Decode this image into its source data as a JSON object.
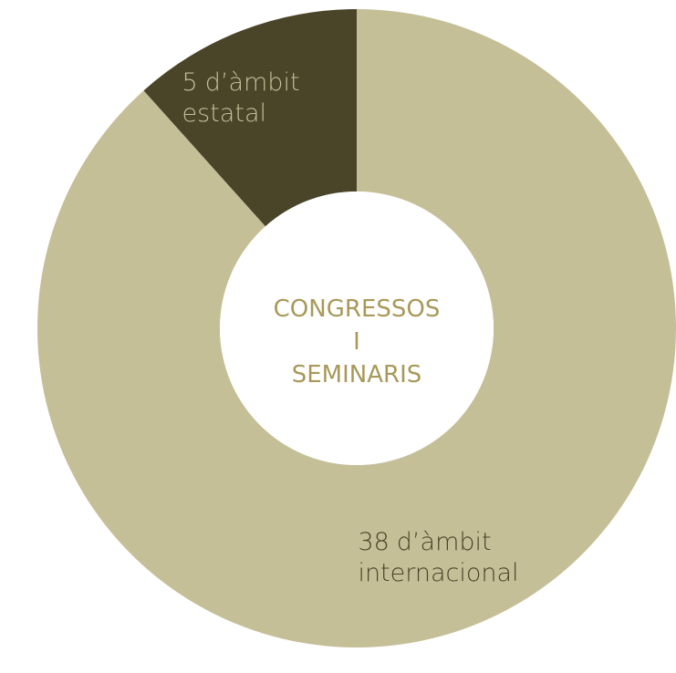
{
  "chart_data": {
    "type": "donut",
    "categories": [
      "d’àmbit estatal",
      "d’àmbit internacional"
    ],
    "values": [
      5,
      38
    ],
    "colors": [
      "#4a4429",
      "#c5bf98"
    ],
    "label_colors": [
      "#c5bf98",
      "#4a4429"
    ],
    "center_text": [
      "CONGRESSOS",
      "I",
      "SEMINARIS"
    ],
    "center_color": "#a8995a"
  }
}
